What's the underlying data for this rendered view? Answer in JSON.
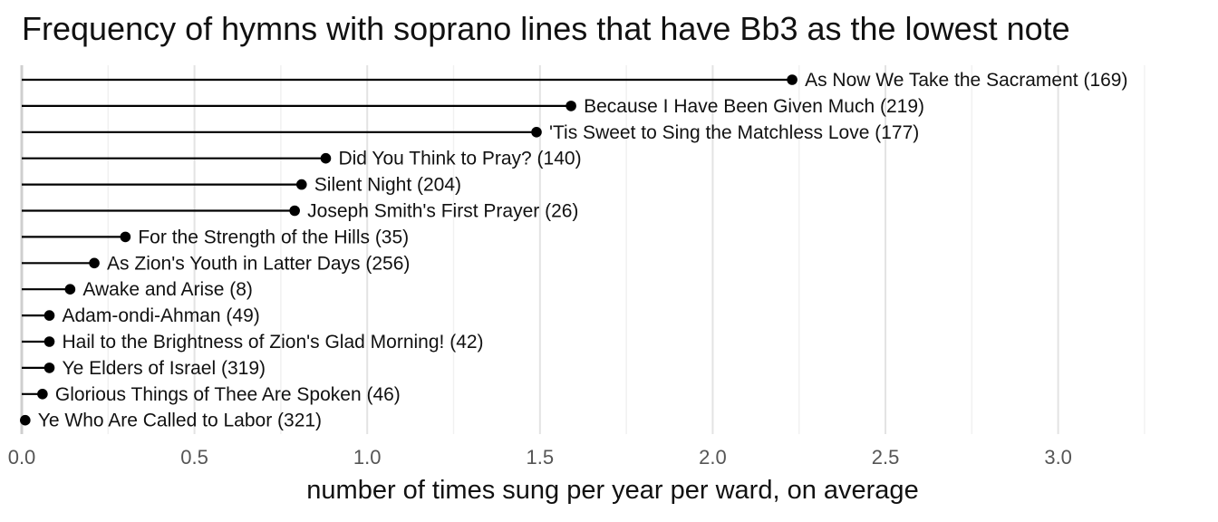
{
  "chart_data": {
    "type": "lollipop",
    "title": "Frequency of hymns with soprano lines that have Bb3 as the lowest note",
    "xlabel": "number of times sung per year per ward, on average",
    "ylabel": "",
    "xlim": [
      0,
      3.3
    ],
    "x_ticks": [
      0.0,
      0.5,
      1.0,
      1.5,
      2.0,
      2.5,
      3.0
    ],
    "x_tick_labels": [
      "0.0",
      "0.5",
      "1.0",
      "1.5",
      "2.0",
      "2.5",
      "3.0"
    ],
    "grid": "vertical",
    "colors": {
      "stem": "#000000",
      "point": "#000000",
      "grid": "#e3e3e3"
    },
    "points": [
      {
        "label": "As Now We Take the Sacrament (169)",
        "value": 2.23
      },
      {
        "label": "Because I Have Been Given Much (219)",
        "value": 1.59
      },
      {
        "label": "'Tis Sweet to Sing the Matchless Love (177)",
        "value": 1.49
      },
      {
        "label": "Did You Think to Pray? (140)",
        "value": 0.88
      },
      {
        "label": "Silent Night (204)",
        "value": 0.81
      },
      {
        "label": "Joseph Smith's First Prayer (26)",
        "value": 0.79
      },
      {
        "label": "For the Strength of the Hills (35)",
        "value": 0.3
      },
      {
        "label": "As Zion's Youth in Latter Days (256)",
        "value": 0.21
      },
      {
        "label": "Awake and Arise (8)",
        "value": 0.14
      },
      {
        "label": "Adam-ondi-Ahman (49)",
        "value": 0.08
      },
      {
        "label": "Hail to the Brightness of Zion's Glad Morning! (42)",
        "value": 0.08
      },
      {
        "label": "Ye Elders of Israel (319)",
        "value": 0.08
      },
      {
        "label": "Glorious Things of Thee Are Spoken (46)",
        "value": 0.06
      },
      {
        "label": "Ye Who Are Called to Labor (321)",
        "value": 0.01
      }
    ]
  }
}
